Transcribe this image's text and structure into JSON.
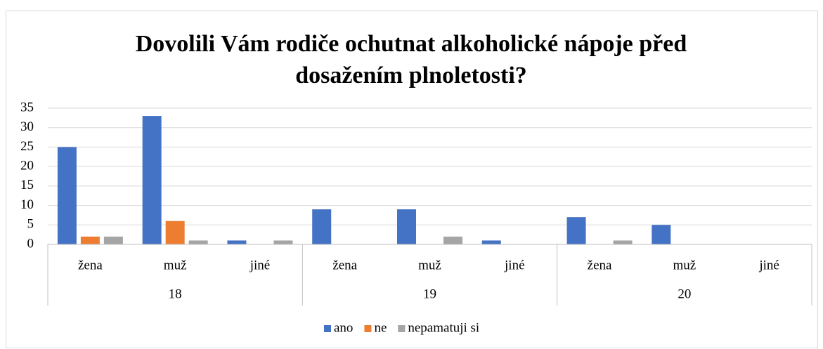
{
  "chart_data": {
    "type": "bar",
    "title": "Dovolili Vám rodiče ochutnat alkoholické nápoje před dosažením plnoletosti?",
    "categories": [
      "žena",
      "muž",
      "jiné",
      "žena",
      "muž",
      "jiné",
      "žena",
      "muž",
      "jiné"
    ],
    "groups": [
      "18",
      "19",
      "20"
    ],
    "series": [
      {
        "name": "ano",
        "color": "#4472c4",
        "values": [
          25,
          33,
          1,
          9,
          9,
          1,
          7,
          5,
          0
        ]
      },
      {
        "name": "ne",
        "color": "#ed7d31",
        "values": [
          2,
          6,
          0,
          0,
          0,
          0,
          0,
          0,
          0
        ]
      },
      {
        "name": "nepamatuji si",
        "color": "#a5a5a5",
        "values": [
          2,
          1,
          1,
          0,
          2,
          0,
          1,
          0,
          0
        ]
      }
    ],
    "ylim": [
      0,
      35
    ],
    "yticks": [
      0,
      5,
      10,
      15,
      20,
      25,
      30,
      35
    ],
    "grid": true,
    "legend": "bottom"
  }
}
